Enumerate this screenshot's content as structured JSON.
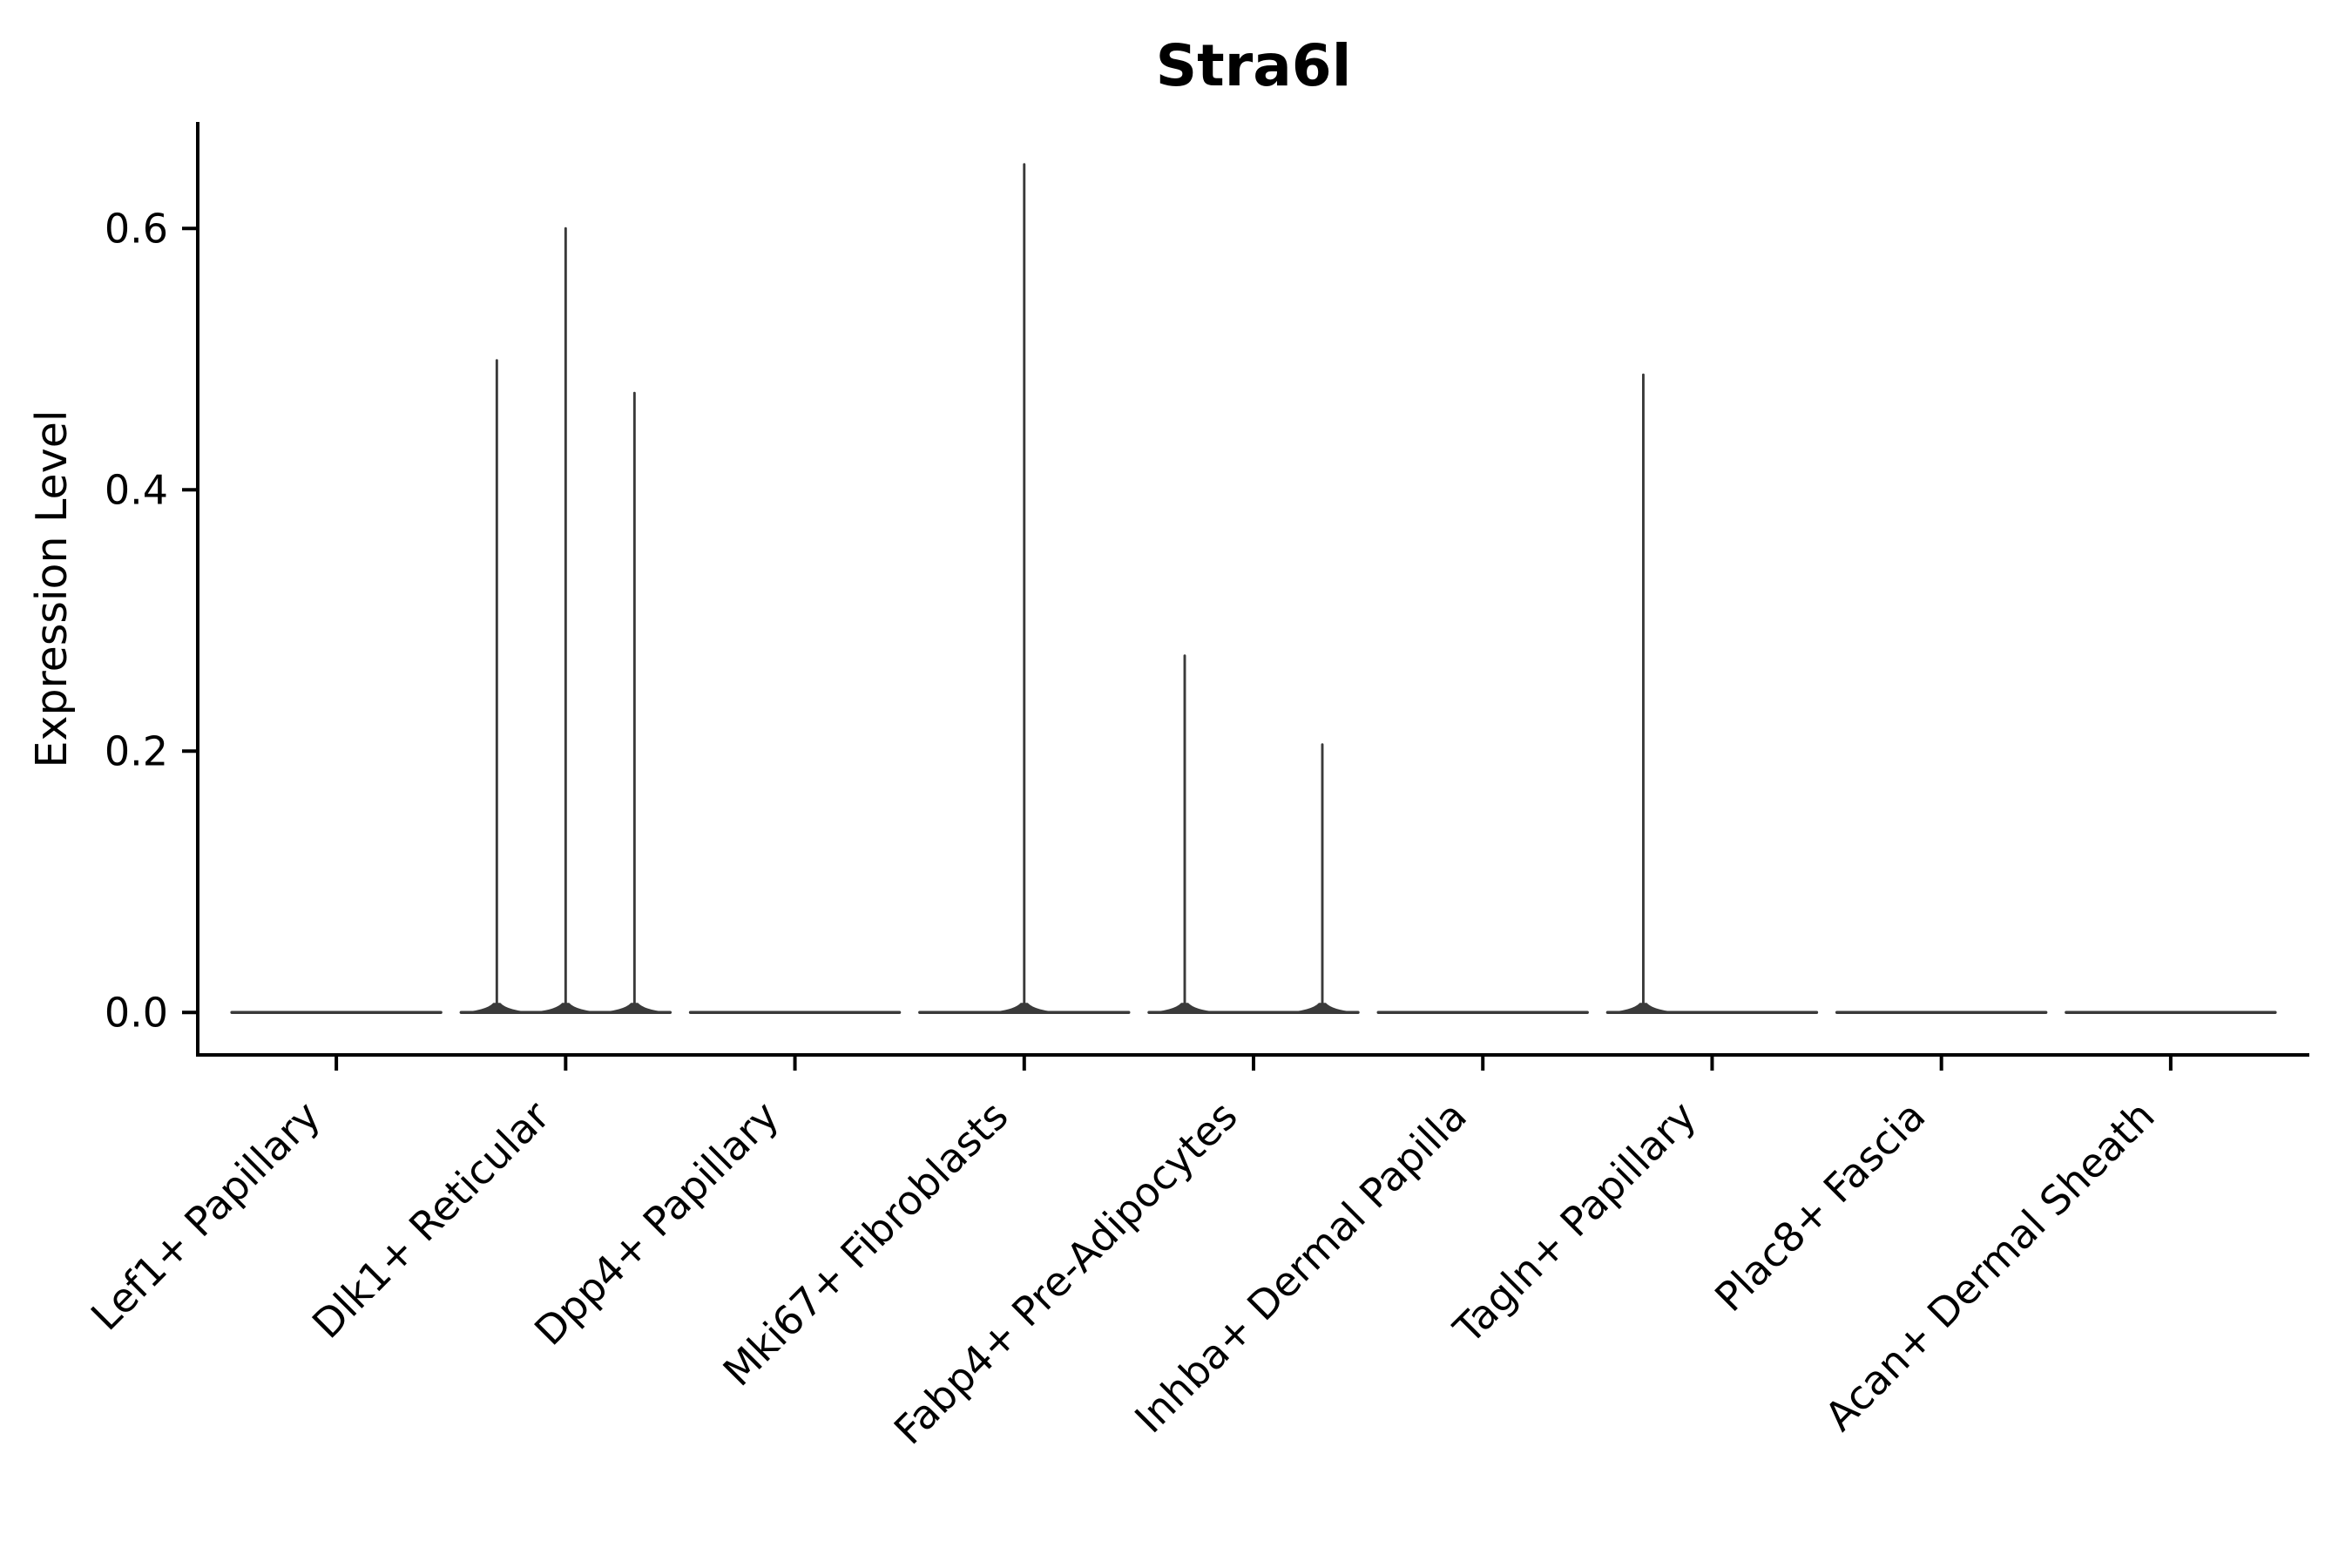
{
  "title": "Stra6l",
  "y_axis": {
    "label": "Expression Level",
    "tick_labels": [
      "0.0",
      "0.2",
      "0.4",
      "0.6"
    ],
    "tick_values": [
      0.0,
      0.2,
      0.4,
      0.6
    ]
  },
  "x_axis": {
    "categories": [
      "Lef1+ Papillary",
      "Dlk1+ Reticular",
      "Dpp4+ Papillary",
      "Mki67+ Fibroblasts",
      "Fabp4+ Pre-Adipocytes",
      "Inhba+ Dermal Papilla",
      "Tagln+ Papillary",
      "Plac8+ Fascia",
      "Acan+ Dermal Sheath"
    ]
  },
  "chart_data": {
    "type": "violin",
    "title": "Stra6l",
    "xlabel": "",
    "ylabel": "Expression Level",
    "ylim": [
      -0.0325,
      0.6815
    ],
    "yticks": [
      0.0,
      0.2,
      0.4,
      0.6
    ],
    "grid": false,
    "legend": "none",
    "categories": [
      "Lef1+ Papillary",
      "Dlk1+ Reticular",
      "Dpp4+ Papillary",
      "Mki67+ Fibroblasts",
      "Fabp4+ Pre-Adipocytes",
      "Inhba+ Dermal Papilla",
      "Tagln+ Papillary",
      "Plac8+ Fascia",
      "Acan+ Dermal Sheath"
    ],
    "violins": [
      {
        "category": "Lef1+ Papillary",
        "baseline_value": 0.0,
        "spikes": []
      },
      {
        "category": "Dlk1+ Reticular",
        "baseline_value": 0.0,
        "spikes": [
          {
            "dx": -79,
            "peak": 0.499
          },
          {
            "dx": 0,
            "peak": 0.6
          },
          {
            "dx": 79,
            "peak": 0.474
          }
        ]
      },
      {
        "category": "Dpp4+ Papillary",
        "baseline_value": 0.0,
        "spikes": []
      },
      {
        "category": "Mki67+ Fibroblasts",
        "baseline_value": 0.0,
        "spikes": [
          {
            "dx": 0,
            "peak": 0.649
          }
        ]
      },
      {
        "category": "Fabp4+ Pre-Adipocytes",
        "baseline_value": 0.0,
        "spikes": [
          {
            "dx": -79,
            "peak": 0.273
          },
          {
            "dx": 79,
            "peak": 0.205
          }
        ]
      },
      {
        "category": "Inhba+ Dermal Papilla",
        "baseline_value": 0.0,
        "spikes": []
      },
      {
        "category": "Tagln+ Papillary",
        "baseline_value": 0.0,
        "spikes": [
          {
            "dx": -79,
            "peak": 0.488
          }
        ]
      },
      {
        "category": "Plac8+ Fascia",
        "baseline_value": 0.0,
        "spikes": []
      },
      {
        "category": "Acan+ Dermal Sheath",
        "baseline_value": 0.0,
        "spikes": []
      }
    ],
    "violin_color": "#3a3a3a",
    "axis_color": "#000000",
    "background_color": "#ffffff"
  }
}
